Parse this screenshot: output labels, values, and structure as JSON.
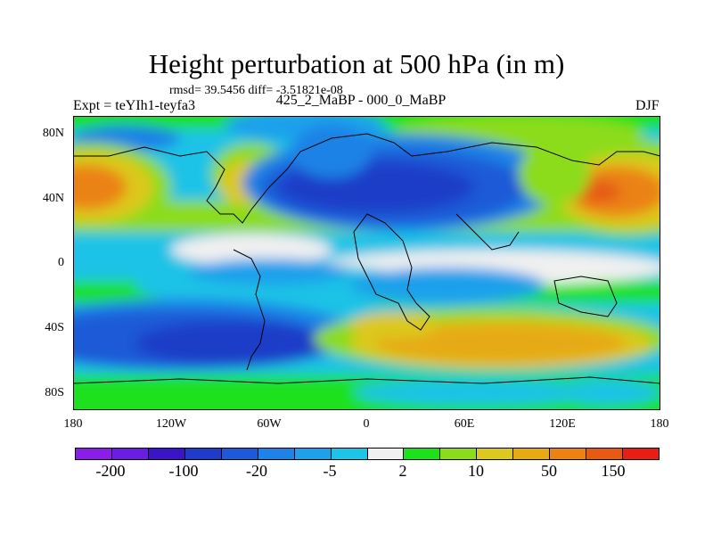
{
  "title": "Height perturbation at 500 hPa (in m)",
  "stats_line": "rmsd= 39.5456 diff= -3.51821e-08",
  "experiment": "Expt = teYIh1-teyfa3",
  "comparison": "425_2_MaBP - 000_0_MaBP",
  "season": "DJF",
  "map": {
    "projection": "cylindrical equidistant",
    "lon_range": [
      -180,
      180
    ],
    "lat_range": [
      -90,
      90
    ],
    "y_ticks": [
      "80N",
      "40N",
      "0",
      "40S",
      "80S"
    ],
    "x_ticks": [
      "180",
      "120W",
      "60W",
      "0",
      "60E",
      "120E",
      "180"
    ],
    "overlay": "coastlines (coarse grid)"
  },
  "colorbar": {
    "colors": [
      "#8a1ee6",
      "#6a1ee0",
      "#3c14c8",
      "#1e3cc8",
      "#1e5ad7",
      "#1e82e6",
      "#1ea0eb",
      "#1ec3e6",
      "#f0f0f0",
      "#1ee11e",
      "#8cdc1e",
      "#dcc81e",
      "#e6aa14",
      "#eb8214",
      "#e65a14",
      "#e61e14"
    ],
    "labels": [
      "-200",
      "-100",
      "-20",
      "-5",
      "2",
      "10",
      "50",
      "150"
    ]
  },
  "chart_data": {
    "type": "heatmap",
    "title": "Height perturbation at 500 hPa (in m)",
    "variable": "500 hPa geopotential height perturbation",
    "units": "m",
    "levels_shown": [
      -200,
      -100,
      -20,
      -5,
      2,
      10,
      50,
      150
    ],
    "x_axis": "longitude",
    "y_axis": "latitude",
    "features": [
      {
        "region": "North Pacific (160E-150W, 40N)",
        "sign": "positive",
        "approx_value": 150
      },
      {
        "region": "Western North Pacific (150E-160E, 35-45N)",
        "sign": "positive",
        "approx_value": 150
      },
      {
        "region": "North America / Atlantic (60W-30W, 40-60N)",
        "sign": "negative",
        "approx_value": -100
      },
      {
        "region": "Eurasia (0-80E, 40-60N)",
        "sign": "negative",
        "approx_value": -100
      },
      {
        "region": "Southern Pacific (150W-100W, 40-60S)",
        "sign": "negative",
        "approx_value": -100
      },
      {
        "region": "Southern Atlantic (60W-0, 40S)",
        "sign": "negative",
        "approx_value": -100
      },
      {
        "region": "Southern Indian Ocean (30E-120E, 50-70S)",
        "sign": "positive",
        "approx_value": 50
      },
      {
        "region": "Tropics (20S-20N)",
        "sign": "mixed weak",
        "approx_value": -5
      }
    ]
  }
}
